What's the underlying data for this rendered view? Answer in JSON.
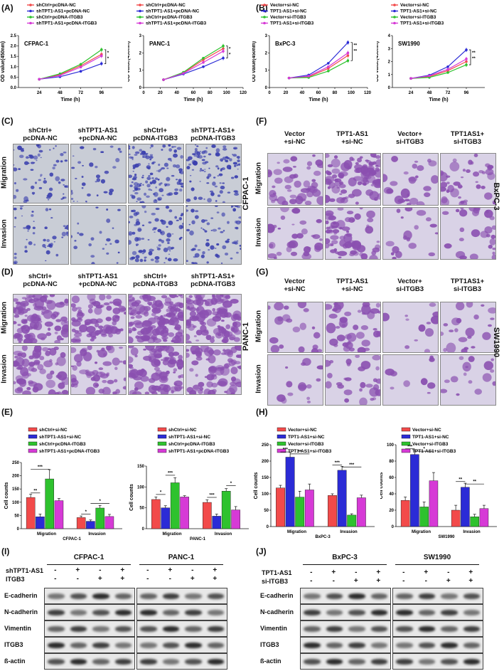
{
  "panels": {
    "A": "(A)",
    "B": "(B)",
    "C": "(C)",
    "D": "(D)",
    "E": "(E)",
    "F": "(F)",
    "G": "(G)",
    "H": "(H)",
    "I": "(I)",
    "J": "(J)"
  },
  "colors": {
    "red": "#f24a4a",
    "blue": "#2b2bd6",
    "green": "#2ec22e",
    "magenta": "#d63ad6",
    "stain_blue": "#3a3fae",
    "stain_purple": "#8a4fb0",
    "bg_grey": "#c9cdd6",
    "bg_lilac": "#d9d2e6"
  },
  "chart_data": [
    {
      "type": "line",
      "id": "cfpac",
      "title": "CFPAC-1",
      "xlabel": "Time (h)",
      "ylabel": "OD value(450nm)",
      "xlim": [
        0,
        120
      ],
      "ylim": [
        0,
        2.5
      ],
      "xticks": [
        24,
        48,
        72,
        96
      ],
      "yticks": [
        0.0,
        0.5,
        1.0,
        1.5,
        2.0,
        2.5
      ],
      "x": [
        24,
        48,
        72,
        96
      ],
      "sig": [
        "*",
        "*"
      ],
      "legend": [
        "shCtrl+pcDNA-NC",
        "shTPT1-AS1+pcDNA-NC",
        "shCtrl+pcDNA-ITGB3",
        "shTPT1-AS1+pcDNA-ITGB3"
      ],
      "series": [
        {
          "name": "shCtrl+pcDNA-NC",
          "color": "red",
          "values": [
            0.4,
            0.62,
            1.05,
            1.6
          ]
        },
        {
          "name": "shTPT1-AS1+pcDNA-NC",
          "color": "blue",
          "values": [
            0.4,
            0.52,
            0.78,
            1.15
          ]
        },
        {
          "name": "shCtrl+pcDNA-ITGB3",
          "color": "green",
          "values": [
            0.4,
            0.66,
            1.12,
            1.82
          ]
        },
        {
          "name": "shTPT1-AS1+pcDNA-ITGB3",
          "color": "magenta",
          "values": [
            0.4,
            0.58,
            0.98,
            1.52
          ]
        }
      ]
    },
    {
      "type": "line",
      "id": "panc",
      "title": "PANC-1",
      "xlabel": "Time (h)",
      "ylabel": "OD value(450nm)",
      "xlim": [
        0,
        120
      ],
      "ylim": [
        0,
        3
      ],
      "xticks": [
        0,
        20,
        40,
        60,
        80,
        100,
        120
      ],
      "yticks": [
        0,
        1,
        2,
        3
      ],
      "x": [
        24,
        48,
        72,
        96
      ],
      "sig": [
        "*",
        "*"
      ],
      "legend": [
        "shCtrl+pcDNA-NC",
        "shTPT1-AS1+pcDNA-NC",
        "shCtrl+pcDNA-ITGB3",
        "shTPT1-AS1+pcDNA-ITGB3"
      ],
      "series": [
        {
          "name": "shCtrl+pcDNA-NC",
          "color": "red",
          "values": [
            0.45,
            0.85,
            1.6,
            2.25
          ]
        },
        {
          "name": "shTPT1-AS1+pcDNA-NC",
          "color": "blue",
          "values": [
            0.45,
            0.78,
            1.2,
            1.7
          ]
        },
        {
          "name": "shCtrl+pcDNA-ITGB3",
          "color": "green",
          "values": [
            0.45,
            0.88,
            1.7,
            2.4
          ]
        },
        {
          "name": "shTPT1-AS1+pcDNA-ITGB3",
          "color": "magenta",
          "values": [
            0.45,
            0.82,
            1.45,
            2.1
          ]
        }
      ]
    },
    {
      "type": "line",
      "id": "bxpc",
      "title": "BxPC-3",
      "xlabel": "Time (h)",
      "ylabel": "OD value(450nm)",
      "xlim": [
        0,
        120
      ],
      "ylim": [
        0,
        3
      ],
      "xticks": [
        0,
        20,
        40,
        60,
        80,
        100,
        120
      ],
      "yticks": [
        0,
        1,
        2,
        3
      ],
      "x": [
        24,
        48,
        72,
        96
      ],
      "sig": [
        "**",
        "**"
      ],
      "legend": [
        "Vector+si-NC",
        "TPT1-AS1+si-NC",
        "Vector+si-ITGB3",
        "TPT1-AS1+si-ITGB3"
      ],
      "series": [
        {
          "name": "Vector+si-NC",
          "color": "red",
          "values": [
            0.55,
            0.62,
            1.1,
            1.85
          ]
        },
        {
          "name": "TPT1-AS1+si-NC",
          "color": "blue",
          "values": [
            0.55,
            0.72,
            1.4,
            2.6
          ]
        },
        {
          "name": "Vector+si-ITGB3",
          "color": "green",
          "values": [
            0.55,
            0.58,
            0.95,
            1.55
          ]
        },
        {
          "name": "TPT1-AS1+si-ITGB3",
          "color": "magenta",
          "values": [
            0.55,
            0.66,
            1.2,
            2.0
          ]
        }
      ]
    },
    {
      "type": "line",
      "id": "sw",
      "title": "SW1990",
      "xlabel": "Time (h)",
      "ylabel": "OD value(450nm)",
      "xlim": [
        0,
        120
      ],
      "ylim": [
        0,
        4
      ],
      "xticks": [
        24,
        48,
        72,
        96
      ],
      "yticks": [
        0,
        1,
        2,
        3,
        4
      ],
      "x": [
        24,
        48,
        72,
        96
      ],
      "sig": [
        "**",
        "**"
      ],
      "legend": [
        "Vector+si-NC",
        "TPT1-AS1+si-NC",
        "Vector+si-ITGB3",
        "TPT1-AS1+si-ITGB3"
      ],
      "series": [
        {
          "name": "Vector+si-NC",
          "color": "red",
          "values": [
            0.7,
            0.85,
            1.3,
            2.0
          ]
        },
        {
          "name": "TPT1-AS1+si-NC",
          "color": "blue",
          "values": [
            0.7,
            0.95,
            1.6,
            2.9
          ]
        },
        {
          "name": "Vector+si-ITGB3",
          "color": "green",
          "values": [
            0.7,
            0.78,
            1.15,
            1.75
          ]
        },
        {
          "name": "TPT1-AS1+si-ITGB3",
          "color": "magenta",
          "values": [
            0.7,
            0.9,
            1.4,
            2.2
          ]
        }
      ]
    },
    {
      "type": "bar",
      "id": "ecfpac",
      "ylabel": "Cell counts",
      "ylim": [
        0,
        250
      ],
      "yticks": [
        0,
        50,
        100,
        150,
        200,
        250
      ],
      "categories": [
        "Migration",
        "Invasion"
      ],
      "cat_sub": [
        "CFPAC-1",
        ""
      ],
      "legend": [
        "shCtrl+si-NC",
        "shTPT1-AS1+si-NC",
        "shCtrl+pcDNA-ITGB3",
        "shTPT1-AS1+pcDNA-ITGB3"
      ],
      "series": [
        {
          "name": "shCtrl+si-NC",
          "color": "red",
          "values": [
            118,
            42
          ],
          "err": [
            12,
            6
          ]
        },
        {
          "name": "shTPT1-AS1+si-NC",
          "color": "blue",
          "values": [
            45,
            28
          ],
          "err": [
            10,
            5
          ]
        },
        {
          "name": "shCtrl+pcDNA-ITGB3",
          "color": "green",
          "values": [
            188,
            78
          ],
          "err": [
            35,
            10
          ]
        },
        {
          "name": "shTPT1-AS1+pcDNA-ITGB3",
          "color": "magenta",
          "values": [
            106,
            46
          ],
          "err": [
            8,
            8
          ]
        }
      ],
      "sig": [
        {
          "g": 0,
          "a": 0,
          "b": 1,
          "y": 135,
          "t": "**"
        },
        {
          "g": 0,
          "a": 0,
          "b": 2,
          "y": 225,
          "t": "***"
        },
        {
          "g": 1,
          "a": 0,
          "b": 1,
          "y": 55,
          "t": "*"
        },
        {
          "g": 1,
          "a": 1,
          "b": 3,
          "y": 95,
          "t": "*"
        }
      ]
    },
    {
      "type": "bar",
      "id": "epanc",
      "ylabel": "Cell counts",
      "ylim": [
        0,
        150
      ],
      "yticks": [
        0,
        50,
        100,
        150
      ],
      "categories": [
        "Migration",
        "Invasion"
      ],
      "cat_sub": [
        "PANC-1",
        ""
      ],
      "legend": [
        "shCtrl+si-NC",
        "shTPT1-AS1+si-NC",
        "shCtrl+pcDNA-ITGB3",
        "shTPT1-AS1+pcDNA-ITGB3"
      ],
      "series": [
        {
          "name": "shCtrl+si-NC",
          "color": "red",
          "values": [
            70,
            63
          ],
          "err": [
            6,
            6
          ]
        },
        {
          "name": "shTPT1-AS1+si-NC",
          "color": "blue",
          "values": [
            50,
            30
          ],
          "err": [
            5,
            5
          ]
        },
        {
          "name": "shCtrl+pcDNA-ITGB3",
          "color": "green",
          "values": [
            110,
            90
          ],
          "err": [
            12,
            6
          ]
        },
        {
          "name": "shTPT1-AS1+pcDNA-ITGB3",
          "color": "magenta",
          "values": [
            76,
            45
          ],
          "err": [
            3,
            8
          ]
        }
      ],
      "sig": [
        {
          "g": 0,
          "a": 0,
          "b": 1,
          "y": 82,
          "t": "*"
        },
        {
          "g": 0,
          "a": 1,
          "b": 2,
          "y": 128,
          "t": "***"
        },
        {
          "g": 1,
          "a": 0,
          "b": 1,
          "y": 75,
          "t": "***"
        },
        {
          "g": 1,
          "a": 2,
          "b": 3,
          "y": 103,
          "t": "*"
        }
      ]
    },
    {
      "type": "bar",
      "id": "hbxpc",
      "ylabel": "Cell counts",
      "ylim": [
        0,
        250
      ],
      "yticks": [
        0,
        50,
        100,
        150,
        200,
        250
      ],
      "categories": [
        "Migration",
        "Invasion"
      ],
      "cat_sub": [
        "BxPC-3",
        ""
      ],
      "legend": [
        "Vector+si-NC",
        "TPT1-AS1+si-NC",
        "Vector+si-ITGB3",
        "TPT1-AS1+si-ITGB3"
      ],
      "series": [
        {
          "name": "Vector+si-NC",
          "color": "red",
          "values": [
            118,
            95
          ],
          "err": [
            8,
            5
          ]
        },
        {
          "name": "TPT1-AS1+si-NC",
          "color": "blue",
          "values": [
            212,
            172
          ],
          "err": [
            15,
            12
          ]
        },
        {
          "name": "Vector+si-ITGB3",
          "color": "green",
          "values": [
            90,
            35
          ],
          "err": [
            18,
            4
          ]
        },
        {
          "name": "TPT1-AS1+si-ITGB3",
          "color": "magenta",
          "values": [
            112,
            88
          ],
          "err": [
            18,
            8
          ]
        }
      ],
      "sig": [
        {
          "g": 0,
          "a": 0,
          "b": 1,
          "y": 228,
          "t": "***"
        },
        {
          "g": 0,
          "a": 1,
          "b": 3,
          "y": 222,
          "t": "**"
        },
        {
          "g": 1,
          "a": 0,
          "b": 1,
          "y": 188,
          "t": "***"
        },
        {
          "g": 1,
          "a": 1,
          "b": 3,
          "y": 182,
          "t": "***"
        }
      ]
    },
    {
      "type": "bar",
      "id": "hsw",
      "ylabel": "Cell counts",
      "ylim": [
        0,
        100
      ],
      "yticks": [
        0,
        20,
        40,
        60,
        80,
        100
      ],
      "categories": [
        "Migration",
        "Invasion"
      ],
      "cat_sub": [
        "SW1990",
        ""
      ],
      "legend": [
        "Vector+si-NC",
        "TPT1-AS1+si-NC",
        "Vector+si-ITGB3",
        "TPT1-AS1+si-ITGB3"
      ],
      "series": [
        {
          "name": "Vector+si-NC",
          "color": "red",
          "values": [
            32,
            20
          ],
          "err": [
            4,
            6
          ]
        },
        {
          "name": "TPT1-AS1+si-NC",
          "color": "blue",
          "values": [
            88,
            48
          ],
          "err": [
            6,
            5
          ]
        },
        {
          "name": "Vector+si-ITGB3",
          "color": "green",
          "values": [
            24,
            12
          ],
          "err": [
            6,
            3
          ]
        },
        {
          "name": "TPT1-AS1+si-ITGB3",
          "color": "magenta",
          "values": [
            56,
            22
          ],
          "err": [
            10,
            4
          ]
        }
      ],
      "sig": [
        {
          "g": 0,
          "a": 0,
          "b": 1,
          "y": 95,
          "t": "***"
        },
        {
          "g": 0,
          "a": 1,
          "b": 3,
          "y": 92,
          "t": "*"
        },
        {
          "g": 1,
          "a": 0,
          "b": 1,
          "y": 55,
          "t": "**"
        },
        {
          "g": 1,
          "a": 1,
          "b": 3,
          "y": 52,
          "t": "**"
        }
      ]
    }
  ],
  "migration": {
    "C": {
      "cols": [
        [
          "shCtrl+",
          "pcDNA-NC"
        ],
        [
          "shTPT1-AS1",
          "+pcDNA-NC"
        ],
        [
          "shCtrl+",
          "pcDNA-ITGB3"
        ],
        [
          "shTPT1-AS1+",
          "pcDNA-ITGB3"
        ]
      ],
      "rows": [
        "Migration",
        "Invasion"
      ],
      "side": "CFPAC-1"
    },
    "D": {
      "cols": [
        [
          "shCtrl+",
          "pcDNA-NC"
        ],
        [
          "shTPT1-AS1",
          "+pcDNA-NC"
        ],
        [
          "shCtrl+",
          "pcDNA-ITGB3"
        ],
        [
          "shTPT1-AS1+",
          "pcDNA-ITGB3"
        ]
      ],
      "rows": [
        "Migration",
        "Invasion"
      ],
      "side": "PANC-1"
    },
    "F": {
      "cols": [
        [
          "Vector",
          "+si-NC"
        ],
        [
          "TPT1-AS1",
          "+si-NC"
        ],
        [
          "Vector+",
          "si-ITGB3"
        ],
        [
          "TPT1AS1+",
          "si-ITGB3"
        ]
      ],
      "rows": [
        "Migration",
        "Invasion"
      ],
      "side": "BxPC-3"
    },
    "G": {
      "cols": [
        [
          "Vector",
          "+si-NC"
        ],
        [
          "TPT1-AS1",
          "+si-NC"
        ],
        [
          "Vector+",
          "si-ITGB3"
        ],
        [
          "TPT1AS1+",
          "si-ITGB3"
        ]
      ],
      "rows": [
        "Migration",
        "Invasion"
      ],
      "side": "SW1990"
    }
  },
  "western": {
    "I": {
      "groups": [
        "CFPAC-1",
        "PANC-1"
      ],
      "cond_rows": [
        {
          "label": "shTPT1-AS1",
          "signs": [
            "-",
            "+",
            "-",
            "+"
          ]
        },
        {
          "label": "ITGB3",
          "signs": [
            "-",
            "-",
            "+",
            "+"
          ]
        }
      ],
      "proteins": [
        "E-cadherin",
        "N-cadherin",
        "Vimentin",
        "ITGB3",
        "ß-actin"
      ]
    },
    "J": {
      "groups": [
        "BxPC-3",
        "SW1990"
      ],
      "cond_rows": [
        {
          "label": "TPT1-AS1",
          "signs": [
            "-",
            "+",
            "-",
            "+"
          ]
        },
        {
          "label": "si-ITGB3",
          "signs": [
            "-",
            "-",
            "+",
            "+"
          ]
        }
      ],
      "proteins": [
        "E-cadherin",
        "N-cadherin",
        "Vimentin",
        "ITGB3",
        "ß-actin"
      ]
    }
  }
}
